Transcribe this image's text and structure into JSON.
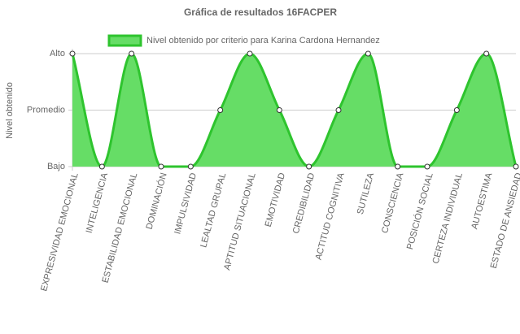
{
  "chart_data": {
    "type": "line",
    "title": "Gráfica de resultados 16FACPER",
    "y_label": "Nivel obtenido",
    "categories": [
      "EXPRESIVIDAD EMOCIONAL",
      "INTELIGENCIA",
      "ESTABILIDAD EMOCIONAL",
      "DOMINACIÓN",
      "IMPULSIVIDAD",
      "LEALTAD GRUPAL",
      "APTITUD SITUACIONAL",
      "EMOTIVIDAD",
      "CREDIBILIDAD",
      "ACTITUD COGNITIVA",
      "SUTILEZA",
      "CONSCIENCIA",
      "POSICIÓN SOCIAL",
      "CERTEZA INDIVIDUAL",
      "AUTOESTIMA",
      "ESTADO DE ANSIEDAD"
    ],
    "series": [
      {
        "name": "Nivel obtenido por criterio para Karina Cardona Hernandez",
        "color": "#2ec42e",
        "fill": "#66dd66",
        "values": [
          3,
          1,
          3,
          1,
          1,
          2,
          3,
          2,
          1,
          2,
          3,
          1,
          1,
          2,
          3,
          1
        ]
      }
    ],
    "ylim": [
      1,
      3
    ],
    "yticks": [
      {
        "value": 1,
        "label": "Bajo"
      },
      {
        "value": 2,
        "label": "Promedio"
      },
      {
        "value": 3,
        "label": "Alto"
      }
    ],
    "grid": true
  }
}
